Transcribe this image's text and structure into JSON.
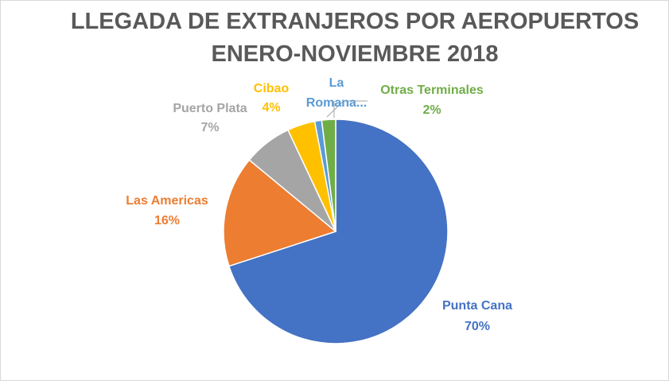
{
  "chart_data": {
    "type": "pie",
    "title": "LLEGADA DE EXTRANJEROS POR AEROPUERTOS",
    "subtitle": "ENERO-NOVIEMBRE 2018",
    "title_color": "#595959",
    "slices": [
      {
        "name": "Punta Cana",
        "value": 70,
        "pct_label": "70%",
        "color": "#4472C4",
        "label_color": "#4472C4"
      },
      {
        "name": "Las Americas",
        "value": 16,
        "pct_label": "16%",
        "color": "#ED7D31",
        "label_color": "#ED7D31"
      },
      {
        "name": "Puerto Plata",
        "value": 7,
        "pct_label": "7%",
        "color": "#A5A5A5",
        "label_color": "#A5A5A5"
      },
      {
        "name": "Cibao",
        "value": 4,
        "pct_label": "4%",
        "color": "#FFC000",
        "label_color": "#FFC000"
      },
      {
        "name": "La Romana",
        "value": 1,
        "pct_label": "La Romana...",
        "label_line1": "La",
        "label_line2": "Romana...",
        "color": "#5B9BD5",
        "label_color": "#5B9BD5"
      },
      {
        "name": "Otras Terminales",
        "value": 2,
        "pct_label": "2%",
        "color": "#70AD47",
        "label_color": "#70AD47"
      }
    ],
    "leader_line_color": "#A6A6A6"
  }
}
